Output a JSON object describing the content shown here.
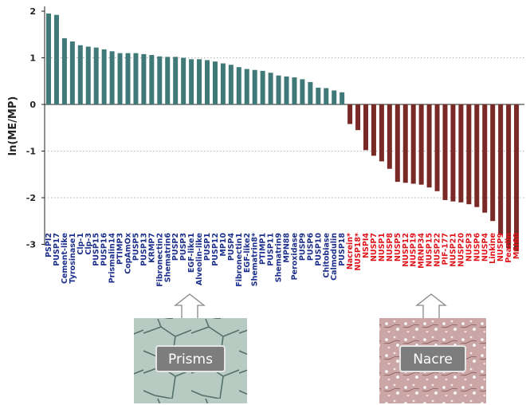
{
  "chart_data": {
    "type": "bar",
    "ylabel": "ln(ME/MP)",
    "ylim": [
      -3.2,
      2.1
    ],
    "yticks": [
      2,
      1,
      0,
      -1,
      -2,
      -3
    ],
    "grid": "dotted horizontal at 1, -1, -2",
    "colors": {
      "positive_bar": "#3f7a78",
      "negative_bar": "#7a2a26",
      "positive_label": "#1c2f8c",
      "negative_label": "#e0141b"
    },
    "categories": [
      "PSPI2",
      "PUSP17",
      "Cement-like",
      "Tyrosinase1",
      "Clp-1",
      "Clp-3",
      "PUSP15",
      "PUSP16",
      "Prismalin14",
      "PTIMP3",
      "CopAmOx",
      "PUSP5",
      "PUSP13",
      "KRMP7",
      "Fibronectin2",
      "Shematrin6",
      "PUSP2",
      "PUSP3",
      "EGF-like1",
      "Alveolin-like",
      "PUSP1",
      "PUSP12",
      "MP10",
      "PUSP4",
      "Fibronectin1",
      "EGF-like2",
      "Shematrin8*",
      "PTIMP1",
      "PUSP11",
      "Shematrin9",
      "MPN88",
      "Peroxidase",
      "PUSP9",
      "PUSP6",
      "PUSP10",
      "Chitobiase",
      "Calmodulin",
      "PUSP18",
      "Nacrein*",
      "NUSP18*",
      "NSPI4",
      "NUSP7",
      "NUSP1",
      "NUSP8",
      "NUSP5",
      "NUSP12",
      "NUSP19",
      "MRNP34",
      "NUSP15",
      "NUSP22",
      "PIF-177",
      "NUSP21",
      "NUSP20",
      "NUSP3",
      "NUSP6",
      "NUSP4",
      "Linkine",
      "NUSP9",
      "Pearlin",
      "MSI60"
    ],
    "values": [
      1.95,
      1.92,
      1.42,
      1.35,
      1.27,
      1.24,
      1.22,
      1.18,
      1.14,
      1.1,
      1.1,
      1.1,
      1.08,
      1.06,
      1.03,
      1.02,
      1.02,
      1.0,
      0.97,
      0.97,
      0.95,
      0.92,
      0.88,
      0.85,
      0.8,
      0.76,
      0.74,
      0.72,
      0.68,
      0.62,
      0.6,
      0.58,
      0.54,
      0.48,
      0.36,
      0.35,
      0.3,
      0.26,
      -0.42,
      -0.55,
      -0.98,
      -1.1,
      -1.22,
      -1.38,
      -1.66,
      -1.68,
      -1.7,
      -1.72,
      -1.78,
      -1.86,
      -2.05,
      -2.08,
      -2.1,
      -2.14,
      -2.2,
      -2.32,
      -2.5,
      -2.8,
      -3.08,
      -3.15
    ]
  },
  "panels": [
    {
      "label": "Prisms"
    },
    {
      "label": "Nacre"
    }
  ]
}
